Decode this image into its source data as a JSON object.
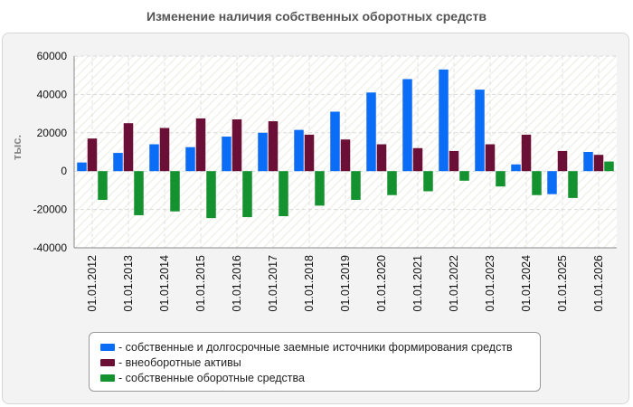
{
  "chart_data": {
    "type": "bar",
    "title": "Изменение наличия собственных оборотных средств",
    "ylabel": "тыс.",
    "xlabel": "",
    "ylim": [
      -40000,
      60000
    ],
    "yticks": [
      -40000,
      -20000,
      0,
      20000,
      40000,
      60000
    ],
    "grid": true,
    "legend_position": "bottom",
    "categories": [
      "01.01.2012",
      "01.01.2013",
      "01.01.2014",
      "01.01.2015",
      "01.01.2016",
      "01.01.2017",
      "01.01.2018",
      "01.01.2019",
      "01.01.2020",
      "01.01.2021",
      "01.01.2022",
      "01.01.2023",
      "01.01.2024",
      "01.01.2025",
      "01.01.2026"
    ],
    "series": [
      {
        "name": "- собственные и долгосрочные заемные источники формирования средств",
        "color": "#0b6cf5",
        "values": [
          4500,
          9500,
          14000,
          12500,
          18000,
          20000,
          21500,
          31000,
          41000,
          48000,
          53000,
          42500,
          3500,
          -12000,
          10000
        ]
      },
      {
        "name": "- внеоборотные активы",
        "color": "#6b0f36",
        "values": [
          17000,
          25000,
          22500,
          27500,
          27000,
          26000,
          19000,
          16500,
          14000,
          12000,
          10500,
          14000,
          19000,
          10500,
          8500
        ]
      },
      {
        "name": "- собственные оборотные средства",
        "color": "#13922f",
        "values": [
          -15000,
          -23000,
          -21000,
          -24500,
          -24000,
          -23500,
          -18000,
          -15000,
          -12500,
          -10500,
          -5000,
          -8000,
          -12500,
          -14000,
          5000
        ]
      }
    ]
  }
}
